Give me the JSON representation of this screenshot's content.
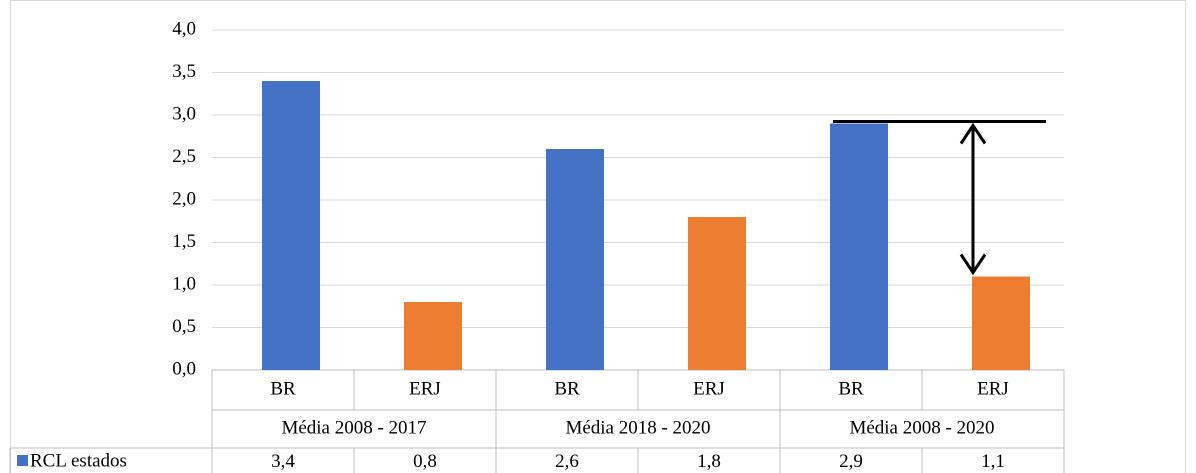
{
  "chart_data": {
    "type": "bar",
    "groups": [
      {
        "name": "Média 2008 - 2017",
        "categories": [
          "BR",
          "ERJ"
        ]
      },
      {
        "name": "Média 2018 - 2020",
        "categories": [
          "BR",
          "ERJ"
        ]
      },
      {
        "name": "Média 2008 - 2020",
        "categories": [
          "BR",
          "ERJ"
        ]
      }
    ],
    "series": [
      {
        "name": "RCL estados",
        "color": "#4472c4",
        "values": [
          3.4,
          0.8,
          2.6,
          1.8,
          2.9,
          1.1
        ],
        "value_labels": [
          "3,4",
          "0,8",
          "2,6",
          "1,8",
          "2,9",
          "1,1"
        ]
      }
    ],
    "bar_colors": [
      "#4472c4",
      "#ed7d31",
      "#4472c4",
      "#ed7d31",
      "#4472c4",
      "#ed7d31"
    ],
    "ylim": [
      0,
      4
    ],
    "yticks": [
      {
        "value": 0,
        "label": "0,0"
      },
      {
        "value": 0.5,
        "label": "0,5"
      },
      {
        "value": 1,
        "label": "1,0"
      },
      {
        "value": 1.5,
        "label": "1,5"
      },
      {
        "value": 2,
        "label": "2,0"
      },
      {
        "value": 2.5,
        "label": "2,5"
      },
      {
        "value": 3,
        "label": "3,0"
      },
      {
        "value": 3.5,
        "label": "3,5"
      },
      {
        "value": 4,
        "label": "4,0"
      }
    ],
    "grid": true,
    "data_table": true
  }
}
